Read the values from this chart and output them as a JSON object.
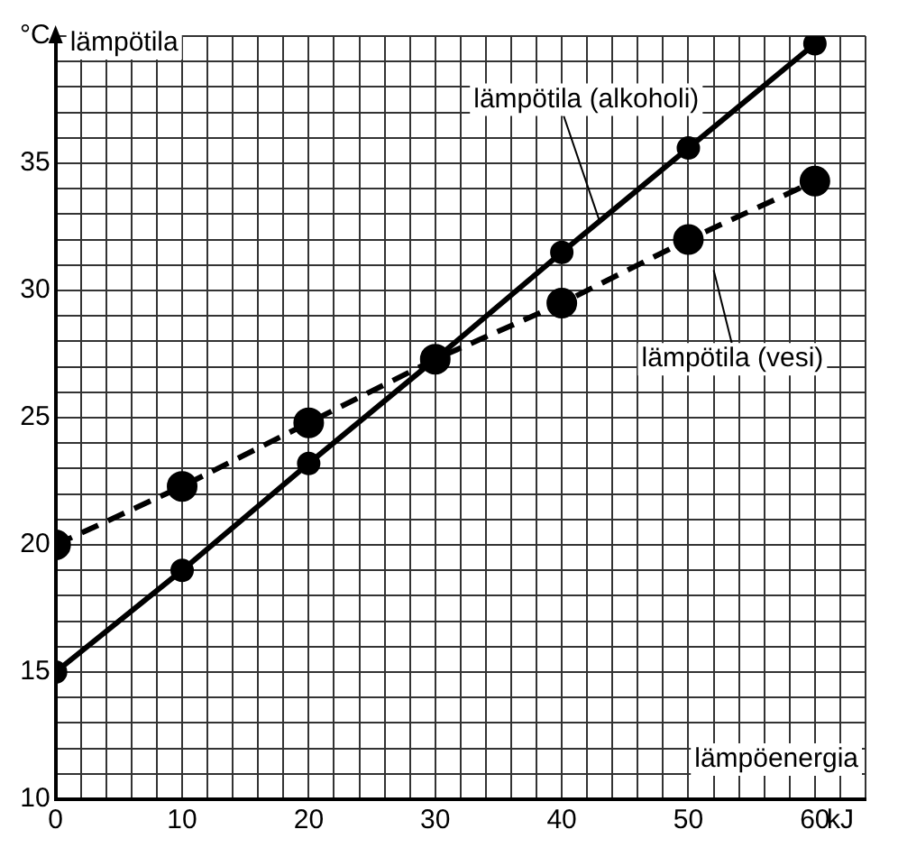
{
  "chart_data": {
    "type": "line",
    "xlabel": "lämpöenergia",
    "ylabel": "lämpötila",
    "x": [
      0,
      10,
      20,
      30,
      40,
      50,
      60
    ],
    "series": [
      {
        "name": "lämpötila (alkoholi)",
        "color": "#000000",
        "line_style": "solid",
        "values": [
          15,
          19,
          23.2,
          27.3,
          31.5,
          35.6,
          39.7
        ]
      },
      {
        "name": "lämpötila (vesi)",
        "color": "#000000",
        "line_style": "dashed",
        "values": [
          20,
          22.3,
          24.8,
          27.3,
          29.5,
          32,
          34.3
        ]
      }
    ],
    "xlim": [
      0,
      64
    ],
    "ylim": [
      10,
      40
    ],
    "xticks": [
      0,
      {
        "value": 2,
        "label": null
      },
      {
        "value": 4,
        "label": null
      },
      {
        "value": 6,
        "label": null
      },
      {
        "value": 8,
        "label": null
      },
      10,
      {
        "value": 12,
        "label": null
      },
      {
        "value": 14,
        "label": null
      },
      {
        "value": 16,
        "label": null
      },
      {
        "value": 18,
        "label": null
      },
      20,
      {
        "value": 22,
        "label": null
      },
      {
        "value": 24,
        "label": null
      },
      {
        "value": 26,
        "label": null
      },
      {
        "value": 28,
        "label": null
      },
      30,
      {
        "value": 32,
        "label": null
      },
      {
        "value": 34,
        "label": null
      },
      {
        "value": 36,
        "label": null
      },
      {
        "value": 38,
        "label": null
      },
      40,
      {
        "value": 42,
        "label": null
      },
      {
        "value": 44,
        "label": null
      },
      {
        "value": 46,
        "label": null
      },
      {
        "value": 48,
        "label": null
      },
      50,
      {
        "value": 52,
        "label": null
      },
      {
        "value": 54,
        "label": null
      },
      {
        "value": 56,
        "label": null
      },
      {
        "value": 58,
        "label": null
      },
      60,
      {
        "value": 62,
        "label": "kJ"
      },
      {
        "value": 64,
        "label": null
      }
    ],
    "yticks": [
      10,
      {
        "value": 11,
        "label": null
      },
      {
        "value": 12,
        "label": null
      },
      {
        "value": 13,
        "label": null
      },
      {
        "value": 14,
        "label": null
      },
      15,
      {
        "value": 16,
        "label": null
      },
      {
        "value": 17,
        "label": null
      },
      {
        "value": 18,
        "label": null
      },
      {
        "value": 19,
        "label": null
      },
      20,
      {
        "value": 21,
        "label": null
      },
      {
        "value": 22,
        "label": null
      },
      {
        "value": 23,
        "label": null
      },
      {
        "value": 24,
        "label": null
      },
      25,
      {
        "value": 26,
        "label": null
      },
      {
        "value": 27,
        "label": null
      },
      {
        "value": 28,
        "label": null
      },
      {
        "value": 29,
        "label": null
      },
      30,
      {
        "value": 31,
        "label": null
      },
      {
        "value": 32,
        "label": null
      },
      {
        "value": 33,
        "label": null
      },
      {
        "value": 34,
        "label": null
      },
      35,
      {
        "value": 36,
        "label": null
      },
      {
        "value": 37,
        "label": null
      },
      {
        "value": 38,
        "label": null
      },
      {
        "value": 39,
        "label": null
      },
      {
        "value": 40,
        "label": "°C"
      }
    ],
    "grid": true,
    "legend": false,
    "marker": "circle"
  }
}
